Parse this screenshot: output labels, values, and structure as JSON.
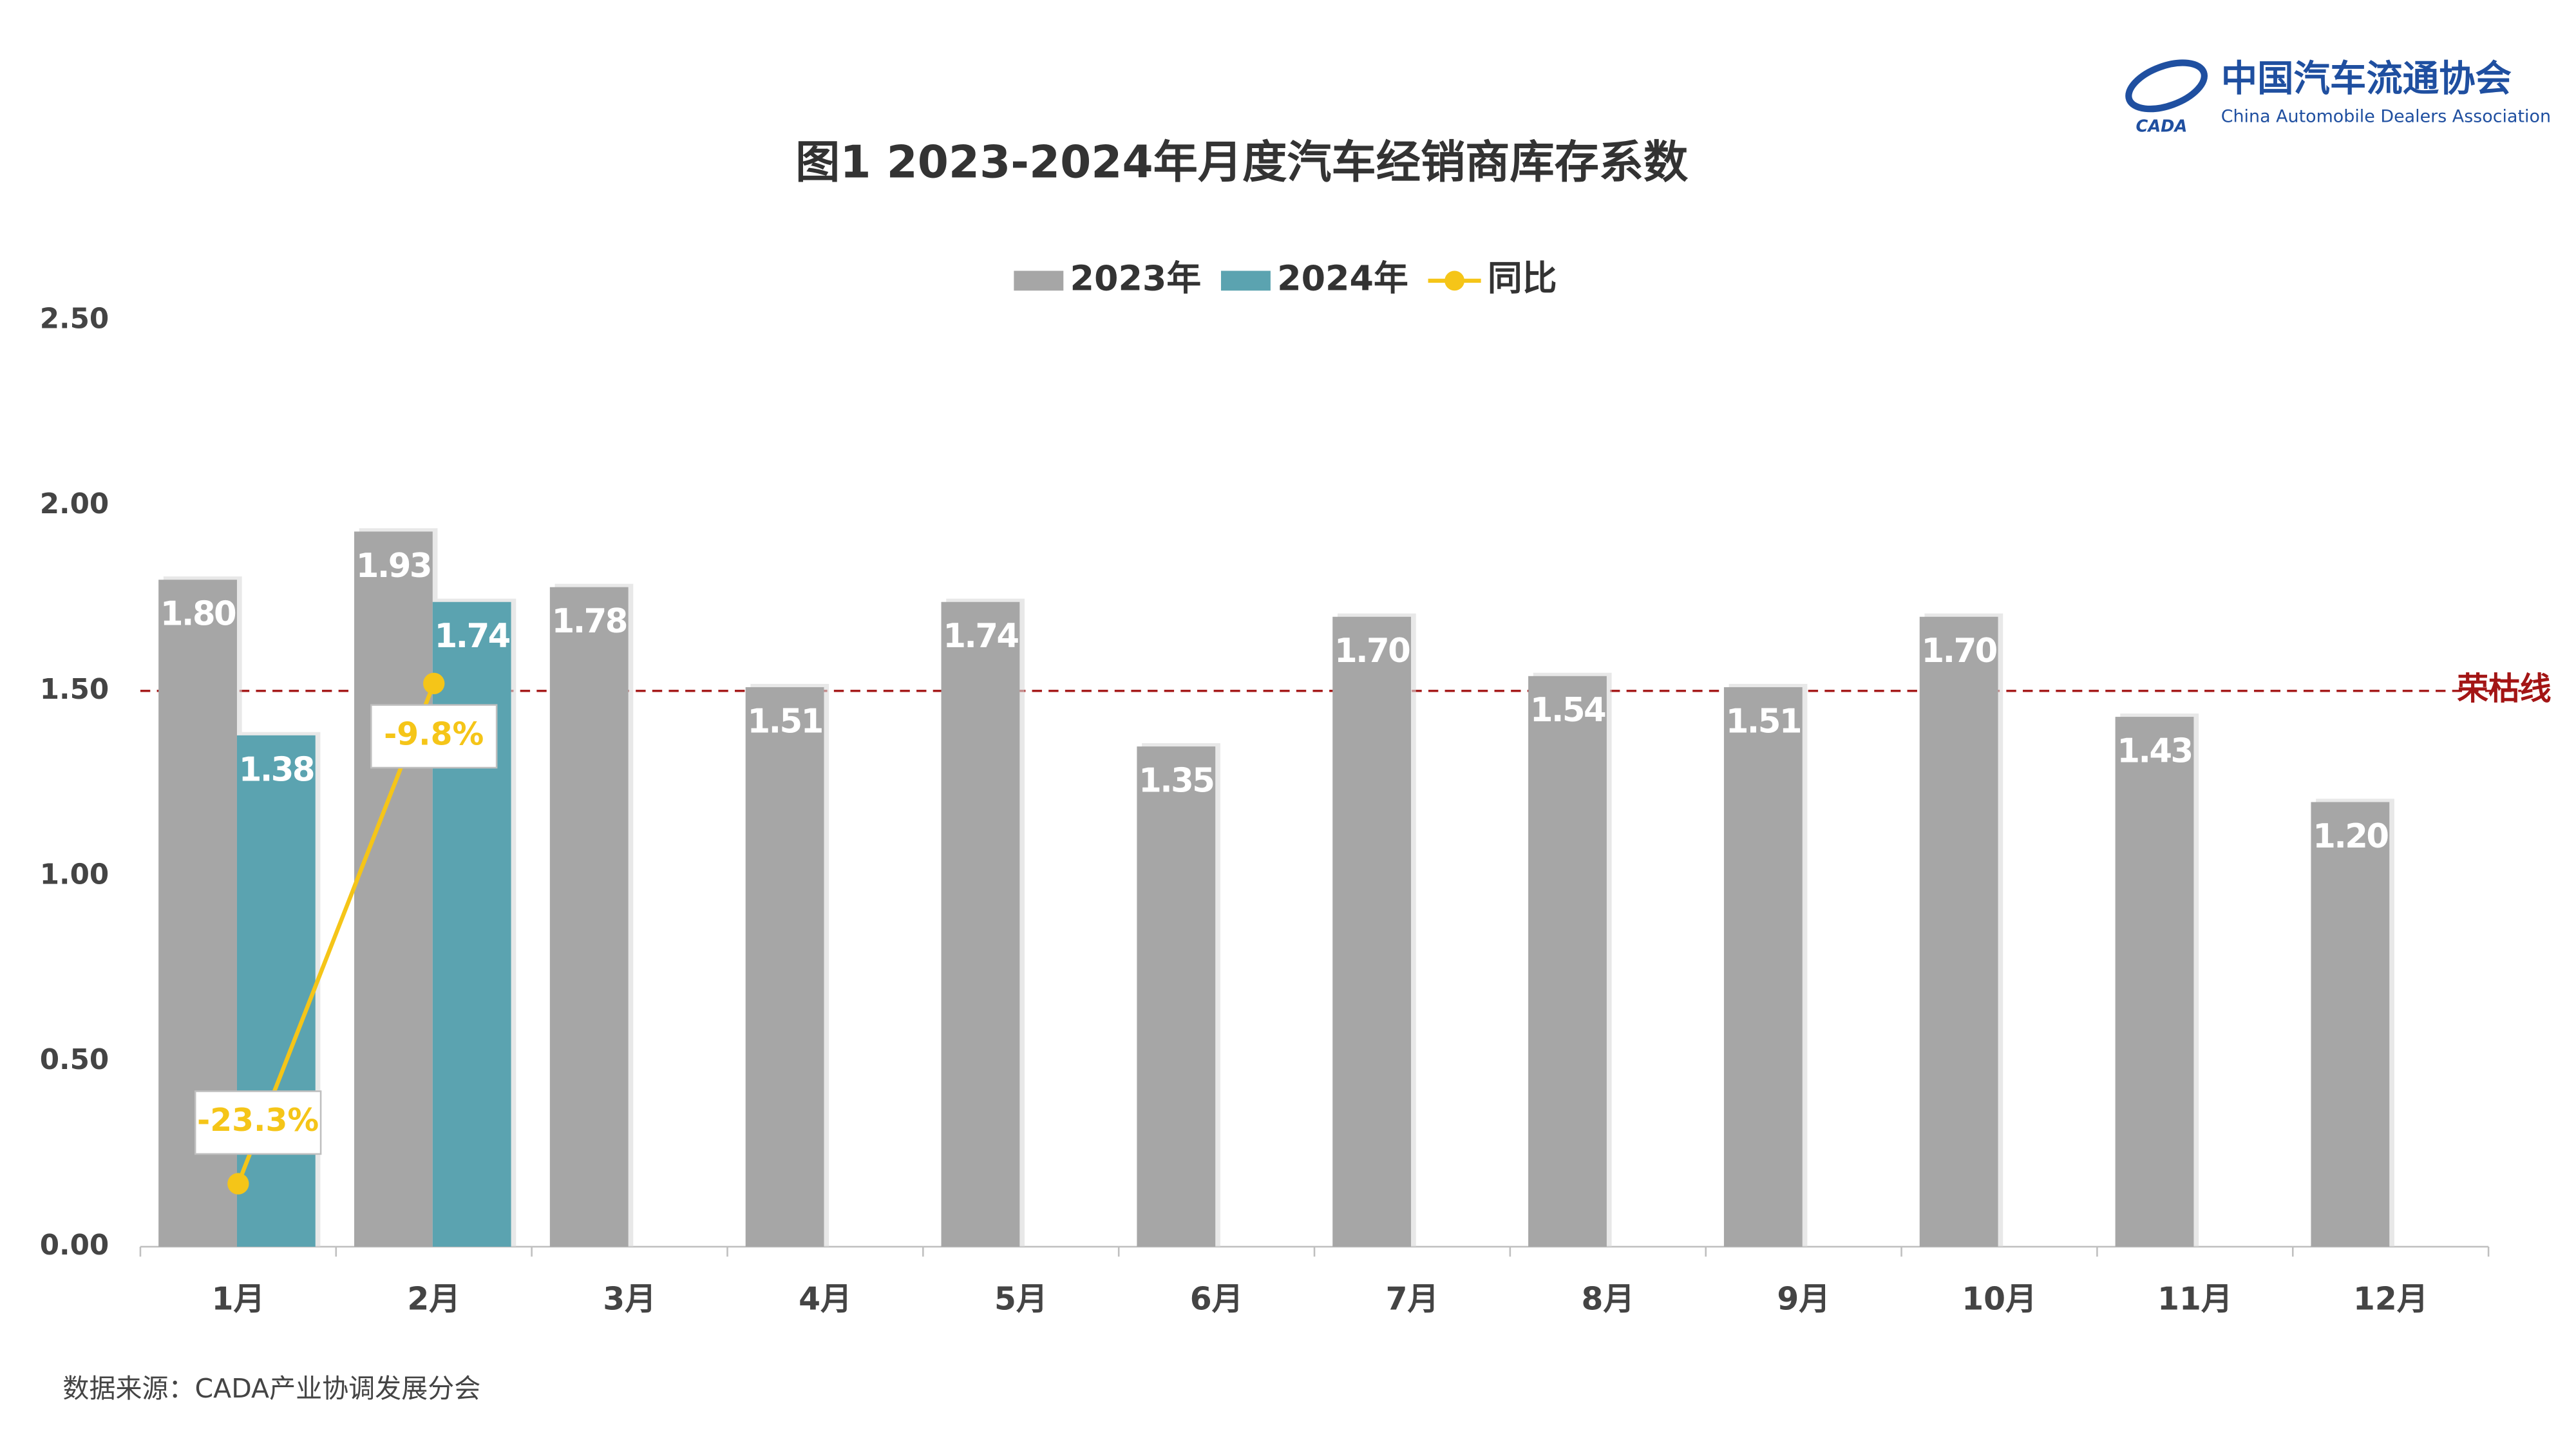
{
  "chart_data": {
    "type": "bar",
    "title": "图1  2023-2024年月度汽车经销商库存系数",
    "brand": {
      "name": "中国汽车流通协会",
      "english": "China Automobile Dealers Association",
      "mark": "CADA"
    },
    "source": "数据来源：CADA产业协调发展分会",
    "categories": [
      "1月",
      "2月",
      "3月",
      "4月",
      "5月",
      "6月",
      "7月",
      "8月",
      "9月",
      "10月",
      "11月",
      "12月"
    ],
    "series": [
      {
        "name": "2023年",
        "color": "#a6a6a6",
        "values": [
          1.8,
          1.93,
          1.78,
          1.51,
          1.74,
          1.35,
          1.7,
          1.54,
          1.51,
          1.7,
          1.43,
          1.2
        ],
        "value_labels": [
          "1.80",
          "1.93",
          "1.78",
          "1.51",
          "1.74",
          "1.35",
          "1.70",
          "1.54",
          "1.51",
          "1.70",
          "1.43",
          "1.20"
        ]
      },
      {
        "name": "2024年",
        "color": "#5ba3b0",
        "values": [
          1.38,
          1.74,
          null,
          null,
          null,
          null,
          null,
          null,
          null,
          null,
          null,
          null
        ],
        "value_labels": [
          "1.38",
          "1.74",
          null,
          null,
          null,
          null,
          null,
          null,
          null,
          null,
          null,
          null
        ]
      },
      {
        "name": "同比",
        "type": "line",
        "axis": "y2",
        "color": "#f5c518",
        "values": [
          -23.3,
          -9.8,
          null,
          null,
          null,
          null,
          null,
          null,
          null,
          null,
          null,
          null
        ],
        "value_labels": [
          "-23.3%",
          "-9.8%",
          null,
          null,
          null,
          null,
          null,
          null,
          null,
          null,
          null,
          null
        ]
      }
    ],
    "ylim": [
      0,
      2.5
    ],
    "yticks": [
      {
        "value": 0,
        "label": "0.00"
      },
      {
        "value": 0.5,
        "label": "0.50"
      },
      {
        "value": 1,
        "label": "1.00"
      },
      {
        "value": 1.5,
        "label": "1.50"
      },
      {
        "value": 2,
        "label": "2.00"
      },
      {
        "value": 2.5,
        "label": "2.50"
      }
    ],
    "y2lim": [
      -25,
      0
    ],
    "reference_line": {
      "value": 1.5,
      "label": "荣枯线",
      "color": "#a31515"
    },
    "legend": "top"
  }
}
